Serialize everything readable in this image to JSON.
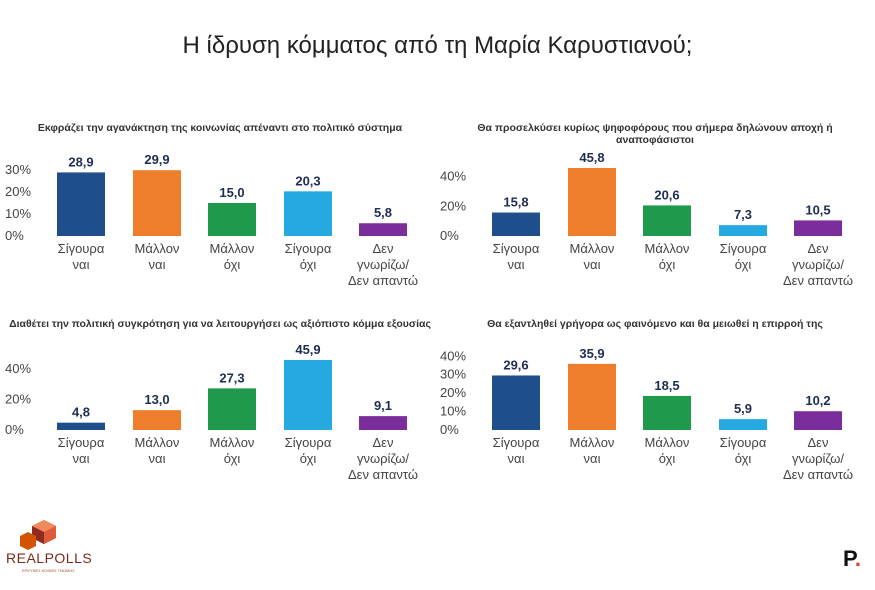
{
  "title": "Η ίδρυση κόμματος από τη Μαρία Καρυστιανού;",
  "colors": [
    "#1f4e8c",
    "#ee7d2c",
    "#1f9a4c",
    "#25a9e0",
    "#7b2d9b"
  ],
  "chart_data": [
    {
      "type": "bar",
      "title": "Εκφράζει την αγανάκτηση της κοινωνίας απέναντι στο πολιτικό σύστημα",
      "categories": [
        [
          "Σίγουρα",
          "ναι"
        ],
        [
          "Μάλλον",
          "ναι"
        ],
        [
          "Μάλλον",
          "όχι"
        ],
        [
          "Σίγουρα",
          "όχι"
        ],
        [
          "Δεν",
          "γνωρίζω/",
          "Δεν απαντώ"
        ]
      ],
      "values": [
        28.9,
        29.9,
        15.0,
        20.3,
        5.8
      ],
      "value_labels": [
        "28,9",
        "29,9",
        "15,0",
        "20,3",
        "5,8"
      ],
      "yticks": [
        "0%",
        "10%",
        "20%",
        "30%"
      ],
      "ytick_values": [
        0,
        10,
        20,
        30
      ],
      "ylim": [
        0,
        30
      ],
      "grid": false,
      "legend": "none"
    },
    {
      "type": "bar",
      "title": "Θα προσελκύσει κυρίως ψηφοφόρους που σήμερα δηλώνουν αποχή ή αναποφάσιστοι",
      "categories": [
        [
          "Σίγουρα",
          "ναι"
        ],
        [
          "Μάλλον",
          "ναι"
        ],
        [
          "Μάλλον",
          "όχι"
        ],
        [
          "Σίγουρα",
          "όχι"
        ],
        [
          "Δεν",
          "γνωρίζω/",
          "Δεν απαντώ"
        ]
      ],
      "values": [
        15.8,
        45.8,
        20.6,
        7.3,
        10.5
      ],
      "value_labels": [
        "15,8",
        "45,8",
        "20,6",
        "7,3",
        "10,5"
      ],
      "yticks": [
        "0%",
        "20%",
        "40%"
      ],
      "ytick_values": [
        0,
        20,
        40
      ],
      "ylim": [
        0,
        45.8
      ],
      "grid": false,
      "legend": "none"
    },
    {
      "type": "bar",
      "title": "Διαθέτει την πολιτική συγκρότηση για να λειτουργήσει ως αξιόπιστο κόμμα εξουσίας",
      "categories": [
        [
          "Σίγουρα",
          "ναι"
        ],
        [
          "Μάλλον",
          "ναι"
        ],
        [
          "Μάλλον",
          "όχι"
        ],
        [
          "Σίγουρα",
          "όχι"
        ],
        [
          "Δεν",
          "γνωρίζω/",
          "Δεν απαντώ"
        ]
      ],
      "values": [
        4.8,
        13.0,
        27.3,
        45.9,
        9.1
      ],
      "value_labels": [
        "4,8",
        "13,0",
        "27,3",
        "45,9",
        "9,1"
      ],
      "yticks": [
        "0%",
        "20%",
        "40%"
      ],
      "ytick_values": [
        0,
        20,
        40
      ],
      "ylim": [
        0,
        45.9
      ],
      "grid": false,
      "legend": "none"
    },
    {
      "type": "bar",
      "title": "Θα εξαντληθεί γρήγορα ως φαινόμενο και θα μειωθεί η επιρροή της",
      "categories": [
        [
          "Σίγουρα",
          "ναι"
        ],
        [
          "Μάλλον",
          "ναι"
        ],
        [
          "Μάλλον",
          "όχι"
        ],
        [
          "Σίγουρα",
          "όχι"
        ],
        [
          "Δεν",
          "γνωρίζω/",
          "Δεν απαντώ"
        ]
      ],
      "values": [
        29.6,
        35.9,
        18.5,
        5.9,
        10.2
      ],
      "value_labels": [
        "29,6",
        "35,9",
        "18,5",
        "5,9",
        "10,2"
      ],
      "yticks": [
        "0%",
        "10%",
        "20%",
        "30%",
        "40%"
      ],
      "ytick_values": [
        0,
        10,
        20,
        30,
        40
      ],
      "ylim": [
        0,
        38
      ],
      "grid": false,
      "legend": "none"
    }
  ],
  "logo": {
    "name": "REALPOLLS",
    "tagline": "ΕΡΕΥΝΕΣ ΚΟΙΝΗΣ ΓΝΩΜΗΣ",
    "right_mark": "P",
    "right_dot": "."
  }
}
